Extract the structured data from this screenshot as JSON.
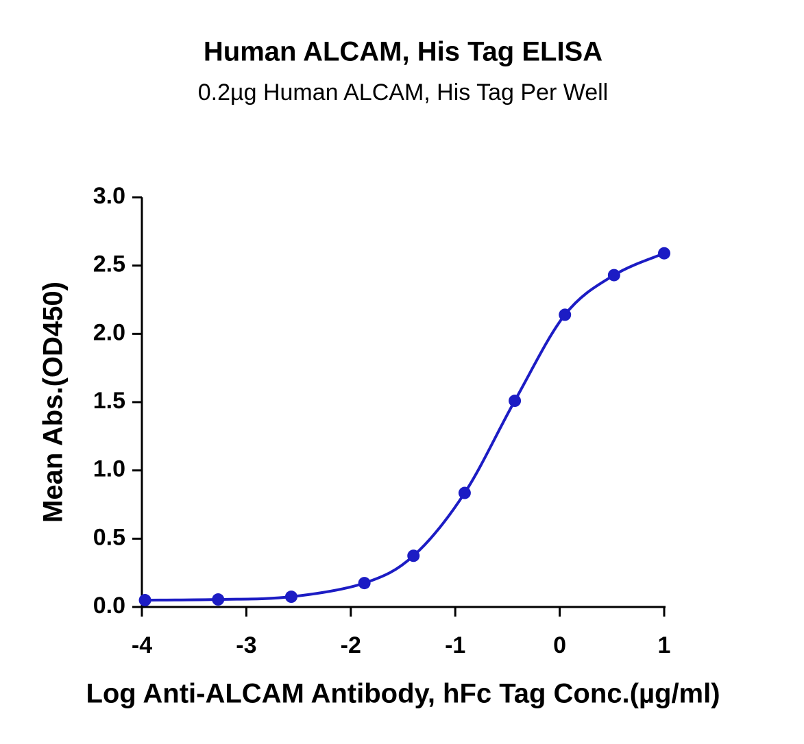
{
  "chart_data": {
    "type": "line",
    "title": "Human ALCAM, His Tag ELISA",
    "subtitle": "0.2µg Human ALCAM, His Tag Per Well",
    "x_label": "Log Anti-ALCAM Antibody, hFc Tag Conc.(µg/ml)",
    "y_label": "Mean Abs.(OD450)",
    "x": [
      -3.97,
      -3.27,
      -2.57,
      -1.87,
      -1.4,
      -0.91,
      -0.43,
      0.05,
      0.52,
      1.0
    ],
    "series": [
      {
        "name": "Human ALCAM, His Tag",
        "color": "#1c1cc4",
        "values": [
          0.05,
          0.055,
          0.075,
          0.175,
          0.375,
          0.835,
          1.51,
          2.14,
          2.43,
          2.59
        ]
      }
    ],
    "xlim": [
      -4,
      1
    ],
    "xticks": [
      -4,
      -3,
      -2,
      -1,
      0,
      1
    ],
    "ylim": [
      0,
      3
    ],
    "yticks": [
      {
        "value": 0,
        "label": "0.0"
      },
      0.5,
      {
        "value": 1,
        "label": "1.0"
      },
      1.5,
      {
        "value": 2,
        "label": "2.0"
      },
      2.5,
      {
        "value": 3,
        "label": "3.0"
      }
    ],
    "grid": false
  }
}
